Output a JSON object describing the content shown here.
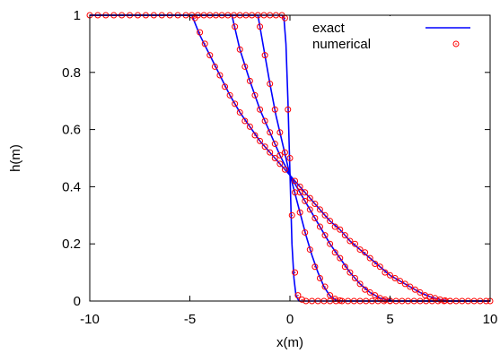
{
  "chart_data": {
    "type": "line",
    "title": "",
    "xlabel": "x(m)",
    "ylabel": "h(m)",
    "xlim": [
      -10,
      10
    ],
    "ylim": [
      0,
      1
    ],
    "xticks": [
      -10,
      -5,
      0,
      5,
      10
    ],
    "yticks": [
      0,
      0.2,
      0.4,
      0.6,
      0.8,
      1
    ],
    "xtick_labels": [
      "-10",
      "-5",
      "0",
      "5",
      "10"
    ],
    "ytick_labels": [
      "0",
      "0.2",
      "0.4",
      "0.6",
      "0.8",
      "1"
    ],
    "grid": false,
    "legend_position": "top-right",
    "legend": [
      {
        "label": "exact",
        "style": "line",
        "color": "#0000ff"
      },
      {
        "label": "numerical",
        "style": "circle",
        "color": "#ff0000"
      }
    ],
    "series": [
      {
        "name": "exact",
        "color": "#0000ff",
        "curves": [
          [
            [
              -10,
              1
            ],
            [
              -0.4,
              1
            ],
            [
              -0.3,
              0.99
            ],
            [
              -0.2,
              0.9
            ],
            [
              -0.1,
              0.7
            ],
            [
              0,
              0.45
            ],
            [
              0.1,
              0.2
            ],
            [
              0.2,
              0.08
            ],
            [
              0.3,
              0.02
            ],
            [
              0.45,
              0
            ],
            [
              10,
              0
            ]
          ],
          [
            [
              -10,
              1
            ],
            [
              -1.6,
              1
            ],
            [
              -1.3,
              0.88
            ],
            [
              -1.0,
              0.76
            ],
            [
              -0.7,
              0.65
            ],
            [
              -0.4,
              0.56
            ],
            [
              -0.1,
              0.47
            ],
            [
              0.2,
              0.39
            ],
            [
              0.5,
              0.31
            ],
            [
              0.8,
              0.23
            ],
            [
              1.1,
              0.16
            ],
            [
              1.4,
              0.1
            ],
            [
              1.7,
              0.05
            ],
            [
              2.0,
              0.018
            ],
            [
              2.3,
              0.003
            ],
            [
              2.6,
              0
            ],
            [
              10,
              0
            ]
          ],
          [
            [
              -10,
              1
            ],
            [
              -2.9,
              1
            ],
            [
              -2.5,
              0.88
            ],
            [
              -2.0,
              0.77
            ],
            [
              -1.5,
              0.67
            ],
            [
              -1.0,
              0.59
            ],
            [
              -0.5,
              0.51
            ],
            [
              0,
              0.44
            ],
            [
              0.5,
              0.38
            ],
            [
              1.0,
              0.32
            ],
            [
              1.5,
              0.26
            ],
            [
              2.0,
              0.2
            ],
            [
              2.5,
              0.15
            ],
            [
              3.0,
              0.1
            ],
            [
              3.5,
              0.06
            ],
            [
              4.0,
              0.03
            ],
            [
              4.5,
              0.01
            ],
            [
              5.2,
              0
            ],
            [
              10,
              0
            ]
          ],
          [
            [
              -10,
              1
            ],
            [
              -4.9,
              1
            ],
            [
              -4.5,
              0.93
            ],
            [
              -4.0,
              0.86
            ],
            [
              -3.5,
              0.79
            ],
            [
              -3.0,
              0.72
            ],
            [
              -2.5,
              0.66
            ],
            [
              -2.0,
              0.61
            ],
            [
              -1.5,
              0.56
            ],
            [
              -1.0,
              0.52
            ],
            [
              -0.5,
              0.48
            ],
            [
              0,
              0.44
            ],
            [
              0.5,
              0.4
            ],
            [
              1.0,
              0.36
            ],
            [
              1.5,
              0.32
            ],
            [
              2.0,
              0.28
            ],
            [
              2.5,
              0.25
            ],
            [
              3.0,
              0.21
            ],
            [
              3.5,
              0.18
            ],
            [
              4.0,
              0.15
            ],
            [
              4.5,
              0.12
            ],
            [
              5.0,
              0.09
            ],
            [
              5.5,
              0.07
            ],
            [
              6.0,
              0.05
            ],
            [
              6.5,
              0.03
            ],
            [
              7.0,
              0.015
            ],
            [
              7.5,
              0.005
            ],
            [
              8.0,
              0
            ],
            [
              10,
              0
            ]
          ]
        ]
      },
      {
        "name": "numerical",
        "color": "#ff0000",
        "points": [
          [
            -10,
            1
          ],
          [
            -9.6,
            1
          ],
          [
            -9.2,
            1
          ],
          [
            -8.8,
            1
          ],
          [
            -8.4,
            1
          ],
          [
            -8.0,
            1
          ],
          [
            -7.6,
            1
          ],
          [
            -7.2,
            1
          ],
          [
            -6.8,
            1
          ],
          [
            -6.4,
            1
          ],
          [
            -6.0,
            1
          ],
          [
            -5.6,
            1
          ],
          [
            -5.2,
            1
          ],
          [
            -4.75,
            0.99
          ],
          [
            -4.5,
            0.94
          ],
          [
            -4.25,
            0.9
          ],
          [
            -4.0,
            0.86
          ],
          [
            -3.75,
            0.82
          ],
          [
            -3.5,
            0.79
          ],
          [
            -3.25,
            0.75
          ],
          [
            -3.0,
            0.72
          ],
          [
            -2.75,
            0.69
          ],
          [
            -2.5,
            0.66
          ],
          [
            -2.25,
            0.63
          ],
          [
            -2.0,
            0.61
          ],
          [
            -1.75,
            0.58
          ],
          [
            -1.5,
            0.56
          ],
          [
            -1.25,
            0.54
          ],
          [
            -1.0,
            0.52
          ],
          [
            -0.75,
            0.5
          ],
          [
            -0.5,
            0.48
          ],
          [
            -0.25,
            0.46
          ],
          [
            0.25,
            0.42
          ],
          [
            0.5,
            0.4
          ],
          [
            0.75,
            0.38
          ],
          [
            1.0,
            0.36
          ],
          [
            1.25,
            0.34
          ],
          [
            1.5,
            0.32
          ],
          [
            1.75,
            0.3
          ],
          [
            2.0,
            0.28
          ],
          [
            2.25,
            0.26
          ],
          [
            2.5,
            0.25
          ],
          [
            2.75,
            0.23
          ],
          [
            3.0,
            0.21
          ],
          [
            3.25,
            0.2
          ],
          [
            3.5,
            0.18
          ],
          [
            3.75,
            0.17
          ],
          [
            4.0,
            0.15
          ],
          [
            4.25,
            0.13
          ],
          [
            4.5,
            0.12
          ],
          [
            4.75,
            0.1
          ],
          [
            5.0,
            0.09
          ],
          [
            5.25,
            0.08
          ],
          [
            5.5,
            0.07
          ],
          [
            5.75,
            0.06
          ],
          [
            6.0,
            0.05
          ],
          [
            6.25,
            0.04
          ],
          [
            6.5,
            0.03
          ],
          [
            6.75,
            0.02
          ],
          [
            7.0,
            0.015
          ],
          [
            7.25,
            0.01
          ],
          [
            7.5,
            0.005
          ],
          [
            7.75,
            0.002
          ],
          [
            8.0,
            0
          ],
          [
            8.3,
            0
          ],
          [
            8.6,
            0
          ],
          [
            8.9,
            0
          ],
          [
            9.2,
            0
          ],
          [
            9.5,
            0
          ],
          [
            9.8,
            0
          ],
          [
            10,
            0
          ],
          [
            -2.75,
            0.96
          ],
          [
            -2.5,
            0.88
          ],
          [
            -2.25,
            0.82
          ],
          [
            -2.0,
            0.77
          ],
          [
            -1.75,
            0.72
          ],
          [
            -1.5,
            0.67
          ],
          [
            -1.25,
            0.63
          ],
          [
            -1.0,
            0.59
          ],
          [
            -0.75,
            0.55
          ],
          [
            -0.5,
            0.51
          ],
          [
            0.5,
            0.38
          ],
          [
            0.75,
            0.35
          ],
          [
            1.0,
            0.32
          ],
          [
            1.25,
            0.29
          ],
          [
            1.5,
            0.26
          ],
          [
            1.75,
            0.23
          ],
          [
            2.0,
            0.2
          ],
          [
            2.25,
            0.17
          ],
          [
            2.5,
            0.15
          ],
          [
            2.75,
            0.12
          ],
          [
            3.0,
            0.1
          ],
          [
            3.25,
            0.08
          ],
          [
            3.5,
            0.06
          ],
          [
            3.75,
            0.04
          ],
          [
            4.0,
            0.03
          ],
          [
            4.25,
            0.02
          ],
          [
            4.5,
            0.01
          ],
          [
            4.75,
            0.005
          ],
          [
            5.0,
            0.001
          ],
          [
            -1.5,
            0.96
          ],
          [
            -1.25,
            0.86
          ],
          [
            -1.0,
            0.76
          ],
          [
            -0.75,
            0.67
          ],
          [
            -0.5,
            0.59
          ],
          [
            -0.25,
            0.52
          ],
          [
            0.25,
            0.38
          ],
          [
            0.5,
            0.31
          ],
          [
            0.75,
            0.24
          ],
          [
            1.0,
            0.18
          ],
          [
            1.25,
            0.12
          ],
          [
            1.5,
            0.08
          ],
          [
            1.75,
            0.05
          ],
          [
            2.0,
            0.02
          ],
          [
            2.25,
            0.008
          ],
          [
            2.5,
            0.002
          ],
          [
            -0.25,
            0.99
          ],
          [
            -0.1,
            0.67
          ],
          [
            0,
            0.5
          ],
          [
            0.1,
            0.3
          ],
          [
            0.25,
            0.1
          ],
          [
            0.4,
            0.02
          ],
          [
            0.6,
            0.005
          ],
          [
            0.8,
            0
          ],
          [
            1.1,
            0
          ],
          [
            1.4,
            0
          ],
          [
            1.7,
            0
          ],
          [
            2.0,
            0
          ],
          [
            2.3,
            0
          ],
          [
            2.6,
            0
          ],
          [
            2.9,
            0
          ],
          [
            3.2,
            0
          ],
          [
            3.5,
            0
          ],
          [
            3.8,
            0
          ],
          [
            4.1,
            0
          ],
          [
            4.4,
            0
          ],
          [
            4.7,
            0
          ],
          [
            5.0,
            0
          ],
          [
            5.3,
            0
          ],
          [
            5.6,
            0
          ],
          [
            5.9,
            0
          ],
          [
            6.2,
            0
          ],
          [
            6.5,
            0
          ],
          [
            6.8,
            0
          ],
          [
            7.1,
            0
          ],
          [
            7.4,
            0
          ],
          [
            7.7,
            0
          ],
          [
            8.0,
            0
          ],
          [
            -4.9,
            1
          ],
          [
            -4.6,
            1
          ],
          [
            -4.3,
            1
          ],
          [
            -4.0,
            1
          ],
          [
            -3.7,
            1
          ],
          [
            -3.4,
            1
          ],
          [
            -3.1,
            1
          ],
          [
            -2.8,
            1
          ],
          [
            -2.5,
            1
          ],
          [
            -2.2,
            1
          ],
          [
            -1.9,
            1
          ],
          [
            -1.6,
            1
          ],
          [
            -1.3,
            1
          ],
          [
            -1.0,
            1
          ],
          [
            -0.7,
            1
          ],
          [
            -0.4,
            1
          ]
        ]
      }
    ]
  }
}
